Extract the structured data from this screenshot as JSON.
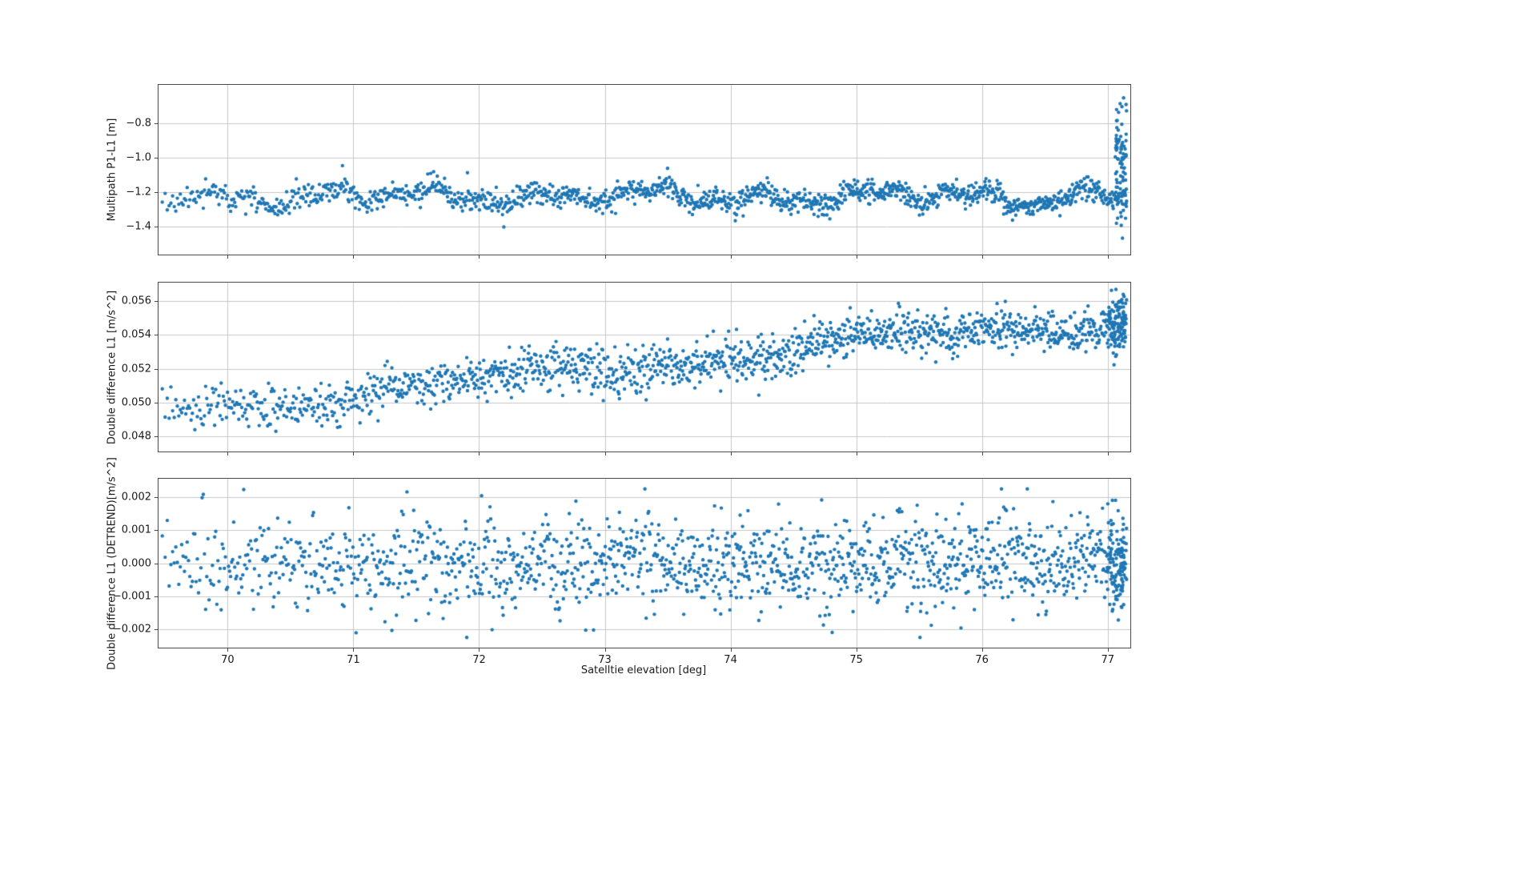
{
  "figure": {
    "background": "#ffffff",
    "point_color": "#1f77b4",
    "grid_color": "#c6c6c6",
    "spine_color": "#4a4a4a",
    "xlabel": "Satelltie elevation [deg]",
    "xticks": [
      70,
      71,
      72,
      73,
      74,
      75,
      76,
      77
    ],
    "xtick_labels": [
      "70",
      "71",
      "72",
      "73",
      "74",
      "75",
      "76",
      "77"
    ],
    "xlim": [
      69.45,
      77.18
    ]
  },
  "chart_data": [
    {
      "type": "scatter",
      "ylabel": "Multipath P1-L1 [m]",
      "xlabel": "Satelltie elevation [deg]",
      "xlim": [
        69.45,
        77.18
      ],
      "ylim": [
        -1.56,
        -0.58
      ],
      "yticks": [
        -0.8,
        -1.0,
        -1.2,
        -1.4
      ],
      "ytick_labels": [
        "−0.8",
        "−1.0",
        "−1.2",
        "−1.4"
      ],
      "grid": true,
      "description": "Code-minus-carrier multipath residual, noisy band centered near -1.22 m spanning about -1.05 to -1.38 m, with a tall vertical burst from -1.46 up to -0.65 m at the right edge near 77.1 deg",
      "model": {
        "seed": 11,
        "n_points": 1450,
        "x_min": 69.48,
        "x_max": 77.15,
        "density_pow": 0.8,
        "base": -1.225,
        "slope": 0.0,
        "noise": 0.032,
        "waves": [
          [
            0.034,
            7.3,
            0.0
          ],
          [
            0.024,
            17.1,
            1.3
          ],
          [
            0.02,
            3.1,
            0.5
          ]
        ],
        "outlier_prob": 0.012,
        "outlier_scale": 2.2,
        "clip": [
          -1.44,
          -0.95
        ],
        "edge_cluster": {
          "x_min": 77.06,
          "x_max": 77.15,
          "count": 80,
          "center": -1.06,
          "sigma": 0.21,
          "clip": [
            -1.465,
            -0.655
          ]
        }
      }
    },
    {
      "type": "scatter",
      "ylabel": "Double difference L1 [m/s^2]",
      "xlabel": "Satelltie elevation [deg]",
      "xlim": [
        69.45,
        77.18
      ],
      "ylim": [
        0.0471,
        0.0571
      ],
      "yticks": [
        0.048,
        0.05,
        0.052,
        0.054,
        0.056
      ],
      "ytick_labels": [
        "0.048",
        "0.050",
        "0.052",
        "0.054",
        "0.056"
      ],
      "grid": true,
      "description": "Double difference acceleration rising roughly linearly from about 0.0495 at 69.5 deg to about 0.055 at 77.1 deg with ~0.001 band of scatter, dense cluster at right edge up to 0.0565",
      "model": {
        "seed": 23,
        "n_points": 1450,
        "x_min": 69.48,
        "x_max": 77.15,
        "density_pow": 0.8,
        "base": 0.0494,
        "slope": 0.00074,
        "noise": 0.00062,
        "waves": [
          [
            0.0004,
            2.1,
            0.7
          ],
          [
            0.00022,
            5.3,
            0.2
          ]
        ],
        "outlier_prob": 0.01,
        "outlier_scale": 1.8,
        "clip": [
          0.0477,
          0.0567
        ],
        "edge_cluster": {
          "x_min": 77.0,
          "x_max": 77.15,
          "count": 90,
          "center": 0.0548,
          "sigma": 0.0009,
          "clip": [
            0.0515,
            0.0567
          ]
        }
      }
    },
    {
      "type": "scatter",
      "ylabel": "Double difference L1 (DETREND)[m/s^2]",
      "xlabel": "Satelltie elevation [deg]",
      "xlim": [
        69.45,
        77.18
      ],
      "ylim": [
        -0.00256,
        0.00256
      ],
      "yticks": [
        -0.002,
        -0.001,
        0.0,
        0.001,
        0.002
      ],
      "ytick_labels": [
        "−0.002",
        "−0.001",
        "0.000",
        "0.001",
        "0.002"
      ],
      "grid": true,
      "description": "Detrended double difference residuals, zero-mean noise with standard deviation near 0.0007 and occasional outliers reaching about +/-0.0022, density increasing toward 77.1 deg",
      "model": {
        "seed": 37,
        "n_points": 1450,
        "x_min": 69.48,
        "x_max": 77.15,
        "density_pow": 0.8,
        "base": 0.0,
        "slope": 0.0,
        "noise": 0.00072,
        "waves": [],
        "outlier_prob": 0.012,
        "outlier_scale": 2.2,
        "clip": [
          -0.00225,
          0.00225
        ],
        "edge_cluster": {
          "x_min": 77.0,
          "x_max": 77.15,
          "count": 90,
          "center": 0.0,
          "sigma": 0.0008,
          "clip": [
            -0.0022,
            0.0022
          ]
        }
      }
    }
  ]
}
